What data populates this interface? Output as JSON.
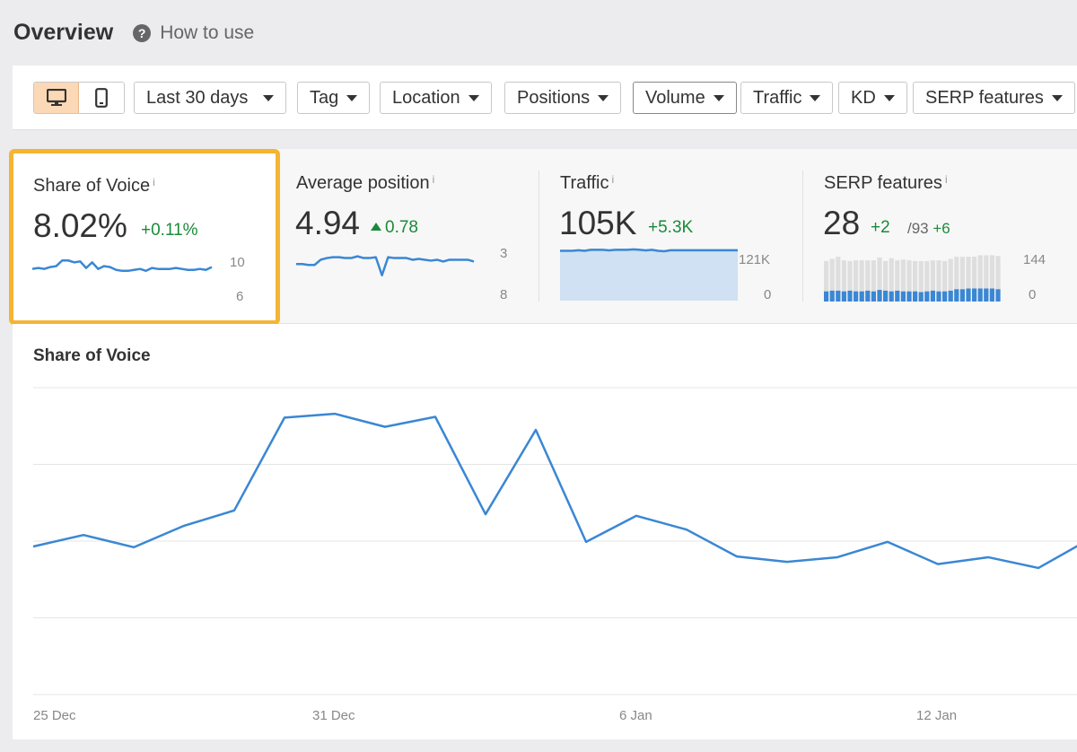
{
  "header": {
    "title": "Overview",
    "help_icon": "?",
    "how_to_use": "How to use"
  },
  "toolbar": {
    "devices": [
      {
        "name": "desktop",
        "active": true
      },
      {
        "name": "mobile",
        "active": false
      }
    ],
    "filters": {
      "date_range": "Last 30 days",
      "tag": "Tag",
      "location": "Location",
      "positions": "Positions",
      "volume": "Volume",
      "traffic": "Traffic",
      "kd": "KD",
      "serp_features": "SERP features"
    }
  },
  "metrics": {
    "share_of_voice": {
      "title": "Share of Voice",
      "info": "i",
      "value": "8.02%",
      "delta": "+0.11%",
      "scale_max": "10",
      "scale_min": "6",
      "trend": [
        8.6,
        8.7,
        8.6,
        8.8,
        8.9,
        9.5,
        9.5,
        9.3,
        9.4,
        8.7,
        9.3,
        8.6,
        8.9,
        8.8,
        8.5,
        8.4,
        8.4,
        8.5,
        8.6,
        8.4,
        8.7,
        8.6,
        8.6,
        8.6,
        8.7,
        8.6,
        8.5,
        8.5,
        8.6,
        8.5,
        8.8
      ]
    },
    "average_position": {
      "title": "Average position",
      "info": "i",
      "value": "4.94",
      "delta": "0.78",
      "scale_top": "3",
      "scale_bottom": "8",
      "trend": [
        4.8,
        4.8,
        4.9,
        4.9,
        4.3,
        4.1,
        4.0,
        4.0,
        4.1,
        4.1,
        3.9,
        4.1,
        4.1,
        4.0,
        6.1,
        4.0,
        4.1,
        4.1,
        4.1,
        4.3,
        4.2,
        4.3,
        4.4,
        4.3,
        4.5,
        4.3,
        4.3,
        4.3,
        4.3,
        4.5
      ]
    },
    "traffic": {
      "title": "Traffic",
      "info": "i",
      "value": "105K",
      "delta": "+5.3K",
      "scale_top": "121K",
      "scale_bottom": "0",
      "trend": [
        105,
        105,
        105,
        106,
        105,
        107,
        107,
        107,
        106,
        107,
        107,
        107,
        108,
        107,
        106,
        107,
        105,
        104,
        106,
        106,
        106,
        106,
        106,
        106,
        106,
        106,
        106,
        106,
        106,
        106
      ]
    },
    "serp_features": {
      "title": "SERP features",
      "info": "i",
      "value": "28",
      "delta": "+2",
      "of_total": "/93",
      "total_delta": "+6",
      "scale_top": "144",
      "scale_bottom": "0",
      "gray_bars": [
        112,
        118,
        124,
        114,
        112,
        114,
        114,
        114,
        114,
        122,
        112,
        120,
        114,
        116,
        114,
        112,
        112,
        112,
        114,
        114,
        112,
        118,
        124,
        124,
        124,
        124,
        128,
        128,
        128,
        126
      ],
      "blue_bars": [
        28,
        30,
        30,
        28,
        30,
        28,
        28,
        30,
        28,
        32,
        30,
        28,
        30,
        28,
        28,
        28,
        26,
        28,
        30,
        28,
        28,
        30,
        34,
        34,
        36,
        36,
        36,
        36,
        36,
        34
      ]
    }
  },
  "main_chart": {
    "title": "Share of Voice",
    "x_ticks": [
      "25 Dec",
      "31 Dec",
      "6 Jan",
      "12 Jan"
    ],
    "line_color": "#3a87d4"
  },
  "chart_data": {
    "type": "line",
    "title": "Share of Voice",
    "x": [
      "25 Dec",
      "26 Dec",
      "27 Dec",
      "28 Dec",
      "29 Dec",
      "30 Dec",
      "31 Dec",
      "1 Jan",
      "2 Jan",
      "3 Jan",
      "4 Jan",
      "5 Jan",
      "6 Jan",
      "7 Jan",
      "8 Jan",
      "9 Jan",
      "10 Jan",
      "11 Jan",
      "12 Jan",
      "13 Jan",
      "14 Jan",
      "15 Jan"
    ],
    "series": [
      {
        "values": [
          7.93,
          8.08,
          7.92,
          8.2,
          8.4,
          9.61,
          9.66,
          9.49,
          9.62,
          8.35,
          9.45,
          7.99,
          8.33,
          8.15,
          7.8,
          7.73,
          7.79,
          7.99,
          7.7,
          7.79,
          7.65,
          8.02
        ]
      }
    ],
    "ylim": [
      6,
      10
    ],
    "grid": true
  }
}
